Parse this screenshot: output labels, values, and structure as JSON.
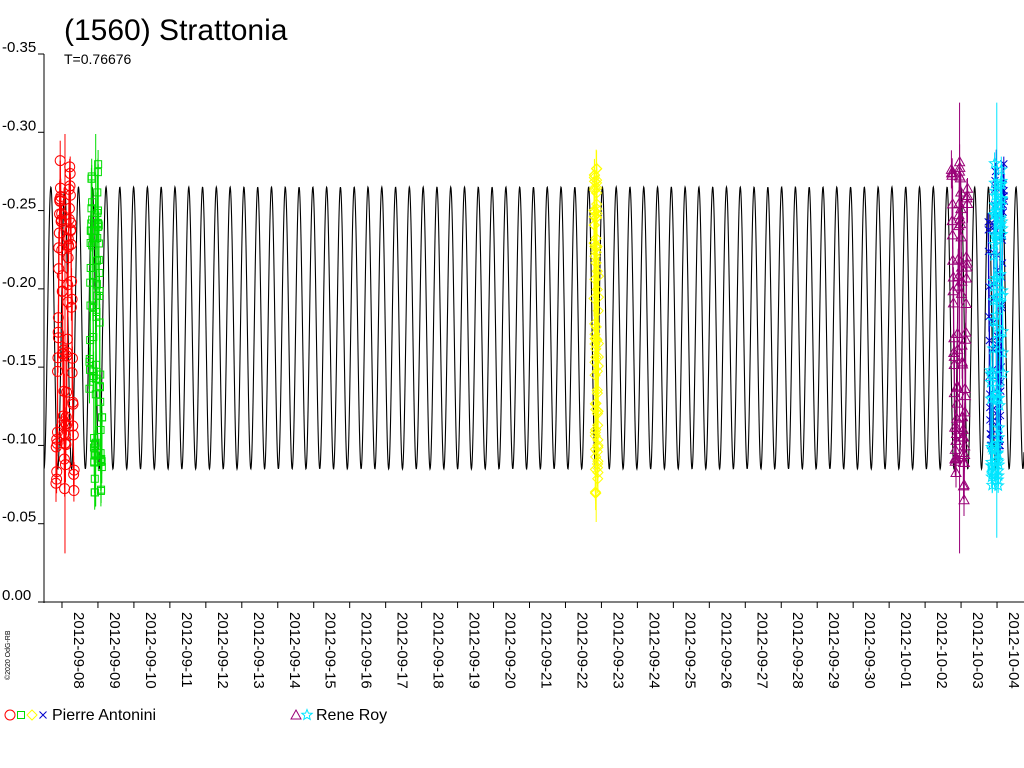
{
  "chart_data": {
    "type": "scatter",
    "title": "(1560) Strattonia",
    "subtitle": "T=0.76676",
    "period": 0.76676,
    "y_axis": {
      "reversed": true,
      "ylim": [
        0.0,
        -0.35
      ],
      "tick_values": [
        0.0,
        -0.05,
        -0.1,
        -0.15,
        -0.2,
        -0.25,
        -0.3,
        -0.35
      ],
      "tick_labels": [
        "0.00",
        "-0.05",
        "-0.10",
        "-0.15",
        "-0.20",
        "-0.25",
        "-0.30",
        "-0.35"
      ]
    },
    "x_axis": {
      "type": "date",
      "range": [
        "2012-09-07T12:00",
        "2012-10-04T18:00"
      ],
      "tick_labels": [
        "2012-09-08",
        "2012-09-09",
        "2012-09-10",
        "2012-09-11",
        "2012-09-12",
        "2012-09-13",
        "2012-09-14",
        "2012-09-15",
        "2012-09-16",
        "2012-09-17",
        "2012-09-18",
        "2012-09-19",
        "2012-09-20",
        "2012-09-21",
        "2012-09-22",
        "2012-09-23",
        "2012-09-24",
        "2012-09-25",
        "2012-09-26",
        "2012-09-27",
        "2012-09-28",
        "2012-09-29",
        "2012-09-30",
        "2012-10-01",
        "2012-10-02",
        "2012-10-03",
        "2012-10-04"
      ]
    },
    "model_curve": {
      "min_mag": -0.085,
      "max_mag": -0.265,
      "color": "#000000"
    },
    "series": [
      {
        "marker": "circle",
        "color": "#ff0000",
        "date": "2012-09-08",
        "center": "2012-09-08T02:00",
        "span_days": 0.5,
        "mag_range": [
          -0.04,
          -0.29
        ]
      },
      {
        "marker": "square",
        "color": "#00dd00",
        "date": "2012-09-09",
        "center": "2012-09-08T22:30",
        "span_days": 0.35,
        "mag_range": [
          -0.07,
          -0.29
        ]
      },
      {
        "marker": "diamond",
        "color": "#ffff00",
        "date": "2012-09-23",
        "center": "2012-09-22T20:30",
        "span_days": 0.12,
        "mag_range": [
          -0.06,
          -0.28
        ]
      },
      {
        "marker": "triangle",
        "color": "#990077",
        "date": "2012-10-03",
        "center": "2012-10-02T23:00",
        "span_days": 0.45,
        "mag_range": [
          -0.04,
          -0.31
        ]
      },
      {
        "marker": "cross",
        "color": "#0000cc",
        "date": "2012-10-04",
        "center": "2012-10-03T23:30",
        "span_days": 0.45,
        "mag_range": [
          -0.1,
          -0.28
        ]
      },
      {
        "marker": "star",
        "color": "#00e5ff",
        "date": "2012-10-04",
        "center": "2012-10-03T23:50",
        "span_days": 0.35,
        "mag_range": [
          -0.05,
          -0.31
        ]
      }
    ],
    "legend": [
      {
        "name": "Pierre Antonini",
        "markers": [
          "circle",
          "square",
          "diamond",
          "cross"
        ],
        "colors": [
          "#ff0000",
          "#00dd00",
          "#ffff00",
          "#0000cc"
        ]
      },
      {
        "name": "Rene Roy",
        "markers": [
          "triangle",
          "star"
        ],
        "colors": [
          "#990077",
          "#00e5ff"
        ]
      }
    ],
    "copyright": "©2020 OdG-RB"
  }
}
